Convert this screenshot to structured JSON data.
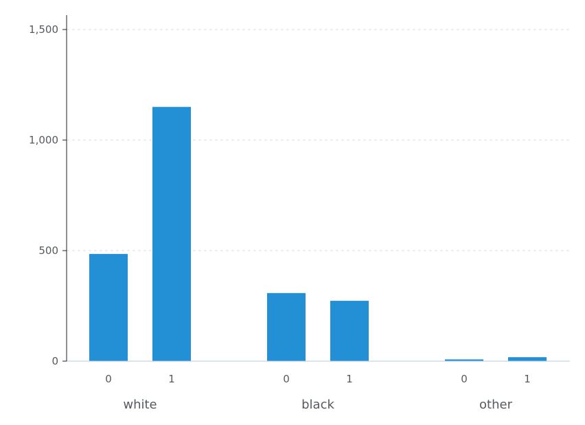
{
  "chart_data": {
    "type": "bar",
    "groups": [
      {
        "label": "white",
        "bars": [
          {
            "label": "0",
            "value": 485
          },
          {
            "label": "1",
            "value": 1150
          }
        ]
      },
      {
        "label": "black",
        "bars": [
          {
            "label": "0",
            "value": 308
          },
          {
            "label": "1",
            "value": 273
          }
        ]
      },
      {
        "label": "other",
        "bars": [
          {
            "label": "0",
            "value": 8
          },
          {
            "label": "1",
            "value": 18
          }
        ]
      }
    ],
    "yticks": [
      0,
      500,
      1000,
      1500
    ],
    "ytick_labels": [
      "0",
      "500",
      "1,000",
      "1,500"
    ],
    "ylim": [
      0,
      1500
    ],
    "grid": true,
    "title": "",
    "xlabel": "",
    "ylabel": "",
    "colors": {
      "bar": "#2390d6",
      "grid": "#d8dde2",
      "axis": "#222222",
      "baseline": "#b8c8d8"
    }
  }
}
